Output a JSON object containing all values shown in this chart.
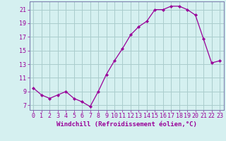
{
  "x": [
    0,
    1,
    2,
    3,
    4,
    5,
    6,
    7,
    8,
    9,
    10,
    11,
    12,
    13,
    14,
    15,
    16,
    17,
    18,
    19,
    20,
    21,
    22,
    23
  ],
  "y": [
    9.5,
    8.5,
    8.0,
    8.5,
    9.0,
    8.0,
    7.5,
    6.8,
    9.0,
    11.5,
    13.5,
    15.3,
    17.3,
    18.5,
    19.3,
    21.0,
    21.0,
    21.5,
    21.5,
    21.0,
    20.2,
    16.7,
    13.2,
    13.5
  ],
  "line_color": "#990099",
  "marker": "D",
  "marker_size": 2.2,
  "bg_color": "#d5f0f0",
  "grid_color": "#aacccc",
  "xlabel": "Windchill (Refroidissement éolien,°C)",
  "xlabel_fontsize": 6.5,
  "xtick_labels": [
    "0",
    "1",
    "2",
    "3",
    "4",
    "5",
    "6",
    "7",
    "8",
    "9",
    "10",
    "11",
    "12",
    "13",
    "14",
    "15",
    "16",
    "17",
    "18",
    "19",
    "20",
    "21",
    "22",
    "23"
  ],
  "ytick_labels": [
    "7",
    "9",
    "11",
    "13",
    "15",
    "17",
    "19",
    "21"
  ],
  "ytick_vals": [
    7,
    9,
    11,
    13,
    15,
    17,
    19,
    21
  ],
  "ylim": [
    6.3,
    22.2
  ],
  "xlim": [
    -0.5,
    23.5
  ],
  "tick_fontsize": 6.0,
  "spine_color": "#7777aa"
}
